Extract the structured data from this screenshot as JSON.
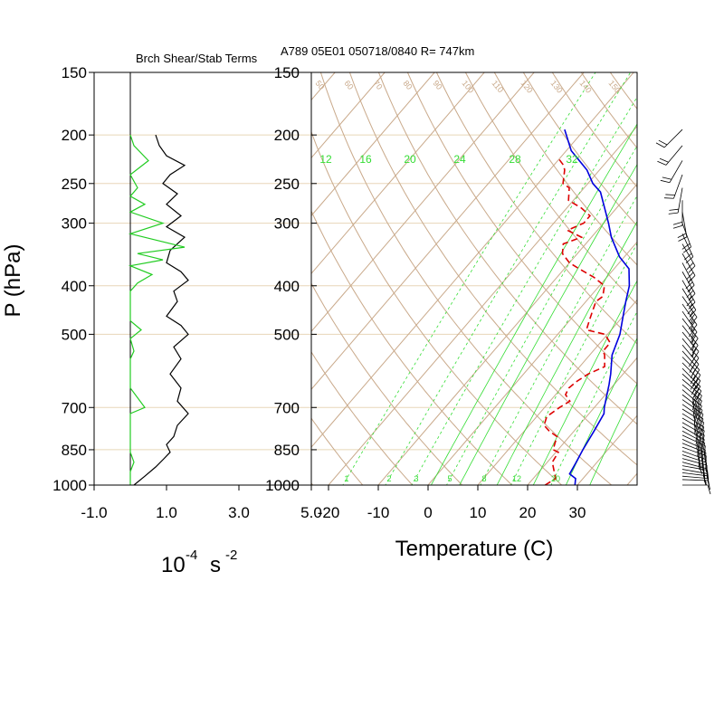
{
  "header": {
    "title": "A789 05E01 050718/0840 R= 747km",
    "left_panel_title": "Brch Shear/Stab Terms"
  },
  "labels": {
    "ylabel": "P (hPa)",
    "left_xlabel_base": "10",
    "left_xlabel_exp": "-4",
    "left_xlabel_unit": "s",
    "left_xlabel_exp2": "-2",
    "right_xlabel": "Temperature (C)"
  },
  "colors": {
    "isotherm": "#c9a98a",
    "mixing_ratio": "#33dd33",
    "temperature": "#0000dd",
    "dewpoint": "#dd0000",
    "shear_term": "#000000",
    "stab_term": "#22cc22",
    "isobar": "#e8d6b8",
    "barb": "#000000"
  },
  "chart_data": [
    {
      "type": "line",
      "panel": "left",
      "title": "Brch Shear/Stab Terms",
      "xlabel": "10^-4 s^-2",
      "ylabel": "P (hPa)",
      "y_scale": "log",
      "ylim": [
        1000,
        150
      ],
      "xlim": [
        -1.0,
        5.0
      ],
      "x_ticks": [
        "-1.0",
        "1.0",
        "3.0",
        "5.0"
      ],
      "y_ticks": [
        150,
        200,
        250,
        300,
        400,
        500,
        700,
        850,
        1000
      ],
      "series": [
        {
          "role": "shear_term",
          "points": [
            [
              0.7,
              200
            ],
            [
              0.8,
              210
            ],
            [
              1.0,
              220
            ],
            [
              1.5,
              230
            ],
            [
              1.1,
              240
            ],
            [
              0.9,
              250
            ],
            [
              1.3,
              262
            ],
            [
              1.0,
              275
            ],
            [
              1.4,
              290
            ],
            [
              1.0,
              305
            ],
            [
              1.5,
              320
            ],
            [
              1.1,
              340
            ],
            [
              1.0,
              360
            ],
            [
              1.4,
              375
            ],
            [
              1.6,
              390
            ],
            [
              1.2,
              410
            ],
            [
              1.3,
              430
            ],
            [
              1.0,
              460
            ],
            [
              1.4,
              480
            ],
            [
              1.6,
              500
            ],
            [
              1.2,
              530
            ],
            [
              1.4,
              560
            ],
            [
              1.1,
              600
            ],
            [
              1.4,
              640
            ],
            [
              1.3,
              680
            ],
            [
              1.6,
              720
            ],
            [
              1.3,
              760
            ],
            [
              1.2,
              800
            ],
            [
              1.0,
              830
            ],
            [
              1.1,
              860
            ],
            [
              0.9,
              890
            ],
            [
              0.7,
              920
            ],
            [
              0.4,
              960
            ],
            [
              0.1,
              1000
            ]
          ]
        },
        {
          "role": "stab_term",
          "points": [
            [
              0.0,
              200
            ],
            [
              0.1,
              210
            ],
            [
              0.5,
              225
            ],
            [
              0.0,
              240
            ],
            [
              0.2,
              255
            ],
            [
              0.0,
              265
            ],
            [
              0.4,
              275
            ],
            [
              0.0,
              285
            ],
            [
              0.9,
              300
            ],
            [
              0.0,
              315
            ],
            [
              1.5,
              335
            ],
            [
              0.2,
              345
            ],
            [
              0.9,
              355
            ],
            [
              0.0,
              365
            ],
            [
              0.6,
              380
            ],
            [
              0.2,
              395
            ],
            [
              0.0,
              410
            ],
            [
              0.0,
              470
            ],
            [
              0.3,
              490
            ],
            [
              0.0,
              510
            ],
            [
              0.1,
              540
            ],
            [
              0.0,
              560
            ],
            [
              0.0,
              640
            ],
            [
              0.4,
              700
            ],
            [
              0.0,
              720
            ],
            [
              0.0,
              860
            ],
            [
              0.1,
              900
            ],
            [
              0.0,
              940
            ],
            [
              0.0,
              1000
            ]
          ]
        }
      ]
    },
    {
      "type": "line",
      "panel": "skewt",
      "title": "A789 05E01 050718/0840 R= 747km",
      "xlabel": "Temperature (C)",
      "y_scale": "log",
      "ylim": [
        1000,
        150
      ],
      "x_ticks": [
        "-20",
        "-10",
        "0",
        "10",
        "20",
        "30"
      ],
      "y_ticks": [
        150,
        200,
        250,
        300,
        400,
        500,
        700,
        850,
        1000
      ],
      "mixing_ratio_labels_top": [
        "12",
        "16",
        "20",
        "24",
        "28",
        "32"
      ],
      "mixing_ratio_labels_bottom": [
        "1",
        "2",
        "3",
        "5",
        "8",
        "12",
        "20"
      ],
      "isotherm_labels_top": [
        "50",
        "60",
        "70",
        "80",
        "90",
        "100",
        "110",
        "120",
        "130",
        "140",
        "150"
      ],
      "series": [
        {
          "name": "temperature",
          "points": [
            [
              29.5,
              1000
            ],
            [
              28.5,
              970
            ],
            [
              26.5,
              950
            ],
            [
              25.8,
              900
            ],
            [
              25.0,
              850
            ],
            [
              24.0,
              780
            ],
            [
              23.0,
              720
            ],
            [
              22.0,
              700
            ],
            [
              19.0,
              630
            ],
            [
              17.5,
              600
            ],
            [
              14.5,
              550
            ],
            [
              12.5,
              500
            ],
            [
              10.0,
              460
            ],
            [
              8.0,
              430
            ],
            [
              6.0,
              400
            ],
            [
              3.0,
              370
            ],
            [
              -1.0,
              350
            ],
            [
              -6.0,
              320
            ],
            [
              -9.0,
              300
            ],
            [
              -16.0,
              260
            ],
            [
              -19.0,
              250
            ],
            [
              -22.5,
              235
            ],
            [
              -29.0,
              215
            ],
            [
              -34.0,
              195
            ]
          ]
        },
        {
          "name": "dewpoint",
          "points": [
            [
              23.5,
              1000
            ],
            [
              24.5,
              970
            ],
            [
              23.5,
              950
            ],
            [
              21.0,
              900
            ],
            [
              20.5,
              860
            ],
            [
              19.0,
              850
            ],
            [
              17.5,
              800
            ],
            [
              15.0,
              780
            ],
            [
              13.0,
              760
            ],
            [
              12.0,
              730
            ],
            [
              13.0,
              700
            ],
            [
              14.0,
              680
            ],
            [
              12.0,
              660
            ],
            [
              11.5,
              640
            ],
            [
              12.0,
              620
            ],
            [
              13.0,
              600
            ],
            [
              15.0,
              580
            ],
            [
              13.0,
              550
            ],
            [
              12.0,
              540
            ],
            [
              12.0,
              520
            ],
            [
              9.5,
              500
            ],
            [
              5.0,
              490
            ],
            [
              4.0,
              470
            ],
            [
              3.0,
              450
            ],
            [
              2.0,
              430
            ],
            [
              2.5,
              420
            ],
            [
              1.0,
              400
            ],
            [
              -2.5,
              385
            ],
            [
              -7.0,
              370
            ],
            [
              -10.0,
              360
            ],
            [
              -13.0,
              345
            ],
            [
              -14.5,
              330
            ],
            [
              -12.0,
              320
            ],
            [
              -16.0,
              310
            ],
            [
              -14.0,
              300
            ],
            [
              -14.0,
              290
            ],
            [
              -17.0,
              280
            ],
            [
              -21.0,
              270
            ],
            [
              -23.0,
              255
            ],
            [
              -25.0,
              250
            ],
            [
              -27.0,
              235
            ],
            [
              -28.0,
              230
            ],
            [
              -30.5,
              222
            ]
          ]
        }
      ],
      "wind_barbs": {
        "levels": [
          1000,
          975,
          960,
          945,
          930,
          915,
          900,
          885,
          870,
          855,
          840,
          825,
          810,
          795,
          780,
          765,
          750,
          735,
          720,
          705,
          690,
          675,
          660,
          645,
          630,
          615,
          600,
          585,
          570,
          555,
          540,
          525,
          510,
          495,
          480,
          465,
          450,
          435,
          420,
          405,
          390,
          375,
          360,
          345,
          330,
          315,
          300,
          285,
          270,
          255,
          240,
          225,
          210,
          195
        ],
        "direction_deg": [
          90,
          92,
          95,
          97,
          100,
          100,
          105,
          105,
          108,
          110,
          110,
          112,
          115,
          115,
          118,
          120,
          120,
          120,
          122,
          122,
          125,
          125,
          128,
          130,
          130,
          130,
          132,
          135,
          135,
          135,
          138,
          140,
          140,
          140,
          142,
          142,
          145,
          145,
          145,
          148,
          150,
          150,
          152,
          150,
          150,
          155,
          160,
          170,
          180,
          190,
          200,
          210,
          220,
          225
        ],
        "speed_kt": [
          10,
          15,
          15,
          20,
          20,
          25,
          25,
          25,
          30,
          30,
          30,
          30,
          30,
          30,
          30,
          30,
          35,
          35,
          35,
          35,
          35,
          35,
          35,
          35,
          30,
          30,
          30,
          30,
          30,
          30,
          30,
          30,
          25,
          25,
          25,
          25,
          25,
          25,
          25,
          25,
          25,
          25,
          25,
          20,
          20,
          20,
          20,
          20,
          20,
          20,
          20,
          20,
          20,
          20
        ]
      }
    }
  ]
}
